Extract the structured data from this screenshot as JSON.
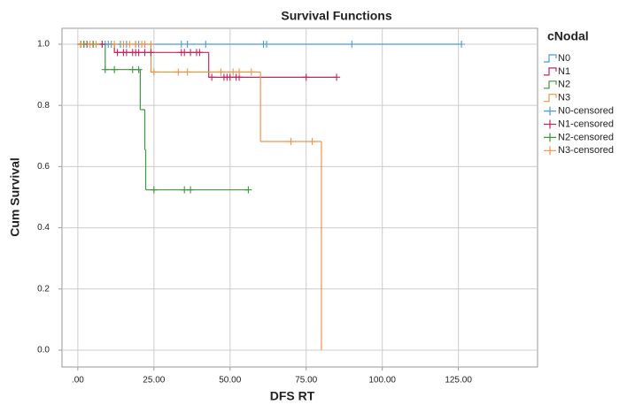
{
  "chart_data": {
    "type": "survival",
    "title": "Survival Functions",
    "x_label": "DFS RT",
    "y_label": "Cum Survival",
    "legend_title": "cNodal",
    "legend_position": "right",
    "grid": true,
    "xlim": [
      -5.2,
      151
    ],
    "ylim": [
      -0.055,
      1.052
    ],
    "xticks": [
      {
        "value": 0,
        "label": ".00"
      },
      {
        "value": 25,
        "label": "25.00"
      },
      {
        "value": 50,
        "label": "50.00"
      },
      {
        "value": 75,
        "label": "75.00"
      },
      {
        "value": 100,
        "label": "100.00"
      },
      {
        "value": 125,
        "label": "125.00"
      }
    ],
    "yticks": [
      {
        "value": 0,
        "label": "0.0"
      },
      {
        "value": 0.2,
        "label": "0.2"
      },
      {
        "value": 0.4,
        "label": "0.4"
      },
      {
        "value": 0.6,
        "label": "0.6"
      },
      {
        "value": 0.8,
        "label": "0.8"
      },
      {
        "value": 1,
        "label": "1.0"
      }
    ],
    "series": [
      {
        "name": "N0",
        "color": "#4a9ad4",
        "kind": "step",
        "x": [
          0,
          126
        ],
        "values": [
          1,
          1
        ]
      },
      {
        "name": "N1",
        "color": "#c4245c",
        "kind": "step",
        "x": [
          0,
          12,
          43,
          85
        ],
        "values": [
          1,
          0.973,
          0.892,
          0.892
        ]
      },
      {
        "name": "N2",
        "color": "#3a973a",
        "kind": "step",
        "x": [
          0,
          9,
          20.5,
          22,
          22.3,
          56
        ],
        "values": [
          1,
          0.917,
          0.786,
          0.655,
          0.524,
          0.524
        ]
      },
      {
        "name": "N3",
        "color": "#f0924a",
        "kind": "step",
        "x": [
          0,
          24,
          60,
          80
        ],
        "values": [
          1,
          0.909,
          0.682,
          0
        ]
      },
      {
        "name": "N0-censored",
        "color": "#4a9ad4",
        "kind": "censor",
        "x": [
          1,
          2,
          5,
          8,
          9,
          10,
          11,
          14,
          16,
          19,
          20,
          22,
          34,
          36,
          42,
          61,
          62,
          90,
          126
        ],
        "values": [
          1,
          1,
          1,
          1,
          1,
          1,
          1,
          1,
          1,
          1,
          1,
          1,
          1,
          1,
          1,
          1,
          1,
          1,
          1
        ]
      },
      {
        "name": "N1-censored",
        "color": "#c4245c",
        "kind": "censor",
        "x": [
          1,
          3,
          5,
          8,
          13,
          15,
          16,
          18,
          19,
          20,
          22,
          24,
          34,
          35,
          37,
          39,
          40,
          44,
          48,
          49,
          50,
          52,
          53,
          75,
          85
        ],
        "values": [
          1,
          1,
          1,
          1,
          0.973,
          0.973,
          0.973,
          0.973,
          0.973,
          0.973,
          0.973,
          0.973,
          0.973,
          0.973,
          0.973,
          0.973,
          0.973,
          0.892,
          0.892,
          0.892,
          0.892,
          0.892,
          0.892,
          0.892,
          0.892
        ]
      },
      {
        "name": "N2-censored",
        "color": "#3a973a",
        "kind": "censor",
        "x": [
          1,
          2,
          5,
          9,
          12,
          18,
          20,
          25,
          35,
          37,
          56
        ],
        "values": [
          1,
          1,
          1,
          0.917,
          0.917,
          0.917,
          0.917,
          0.524,
          0.524,
          0.524,
          0.524
        ]
      },
      {
        "name": "N3-censored",
        "color": "#f0924a",
        "kind": "censor",
        "x": [
          1,
          4,
          6,
          12,
          15,
          17,
          19,
          21,
          22,
          24,
          25,
          33,
          36,
          47,
          51,
          53,
          57,
          70,
          77
        ],
        "values": [
          1,
          1,
          1,
          1,
          1,
          1,
          1,
          1,
          1,
          1,
          0.909,
          0.909,
          0.909,
          0.909,
          0.909,
          0.909,
          0.909,
          0.682,
          0.682
        ]
      }
    ]
  }
}
